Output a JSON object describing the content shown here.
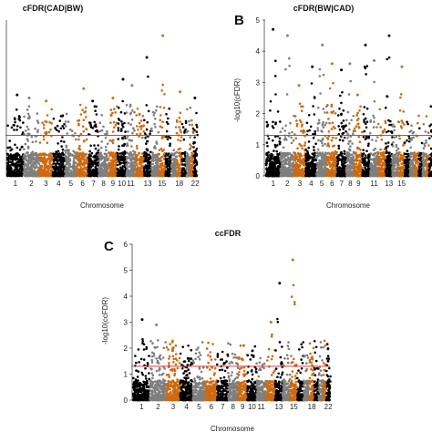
{
  "colors": {
    "chromosome_cycle": [
      "#000000",
      "#7f7f7f",
      "#cd6a10"
    ],
    "threshold": "#e03c3c"
  },
  "chart_data": [
    {
      "type": "scatter",
      "subtype": "manhattan",
      "panel_label": "",
      "title": "cFDR(CAD|BW)",
      "xlabel": "Chromosome",
      "ylabel": "",
      "ylim": [
        0,
        5
      ],
      "yticks": [],
      "x_tick_labels": [
        "1",
        "2",
        "3",
        "4",
        "5",
        "6",
        "7",
        "8",
        "9",
        "10",
        "11",
        "13",
        "15",
        "18",
        "22"
      ],
      "threshold": 1.3,
      "top_points": [
        {
          "chromosome": 1,
          "y": 2.6
        },
        {
          "chromosome": 2,
          "y": 2.5
        },
        {
          "chromosome": 3,
          "y": 2.4
        },
        {
          "chromosome": 6,
          "y": 2.8
        },
        {
          "chromosome": 7,
          "y": 2.4
        },
        {
          "chromosome": 9,
          "y": 2.5
        },
        {
          "chromosome": 10,
          "y": 3.1
        },
        {
          "chromosome": 11,
          "y": 2.9
        },
        {
          "chromosome": 13,
          "y": 3.8
        },
        {
          "chromosome": 15,
          "y": 4.5
        },
        {
          "chromosome": 18,
          "y": 2.7
        },
        {
          "chromosome": 22,
          "y": 2.5
        }
      ]
    },
    {
      "type": "scatter",
      "subtype": "manhattan",
      "panel_label": "B",
      "title": "cFDR(BW|CAD)",
      "xlabel": "Chromosome",
      "ylabel": "-log10(cFDR)",
      "ylim": [
        0,
        5
      ],
      "yticks": [
        0,
        1,
        2,
        3,
        4,
        5
      ],
      "x_tick_labels": [
        "1",
        "2",
        "3",
        "4",
        "5",
        "6",
        "7",
        "8",
        "9",
        "11",
        "13",
        "15"
      ],
      "threshold": 1.3,
      "top_points": [
        {
          "chromosome": 1,
          "y": 4.7
        },
        {
          "chromosome": 2,
          "y": 4.5
        },
        {
          "chromosome": 3,
          "y": 2.9
        },
        {
          "chromosome": 4,
          "y": 3.5
        },
        {
          "chromosome": 5,
          "y": 4.2
        },
        {
          "chromosome": 6,
          "y": 3.6
        },
        {
          "chromosome": 7,
          "y": 3.4
        },
        {
          "chromosome": 8,
          "y": 3.6
        },
        {
          "chromosome": 9,
          "y": 2.6
        },
        {
          "chromosome": 10,
          "y": 4.2
        },
        {
          "chromosome": 11,
          "y": 3.7
        },
        {
          "chromosome": 13,
          "y": 4.5
        },
        {
          "chromosome": 15,
          "y": 3.5
        }
      ]
    },
    {
      "type": "scatter",
      "subtype": "manhattan",
      "panel_label": "C",
      "title": "ccFDR",
      "xlabel": "Chromosome",
      "ylabel": "-log10(ccFDR)",
      "ylim": [
        0,
        6
      ],
      "yticks": [
        0,
        1,
        2,
        3,
        4,
        5,
        6
      ],
      "x_tick_labels": [
        "1",
        "2",
        "3",
        "4",
        "5",
        "6",
        "7",
        "8",
        "9",
        "10",
        "11",
        "13",
        "15",
        "18",
        "22"
      ],
      "threshold": 1.3,
      "top_points": [
        {
          "chromosome": 1,
          "y": 3.1
        },
        {
          "chromosome": 2,
          "y": 2.9
        },
        {
          "chromosome": 3,
          "y": 1.9
        },
        {
          "chromosome": 4,
          "y": 1.6
        },
        {
          "chromosome": 9,
          "y": 2.1
        },
        {
          "chromosome": 10,
          "y": 1.9
        },
        {
          "chromosome": 12,
          "y": 3.0
        },
        {
          "chromosome": 13,
          "y": 4.5
        },
        {
          "chromosome": 15,
          "y": 5.4
        },
        {
          "chromosome": 18,
          "y": 1.6
        },
        {
          "chromosome": 22,
          "y": 1.5
        }
      ]
    }
  ]
}
